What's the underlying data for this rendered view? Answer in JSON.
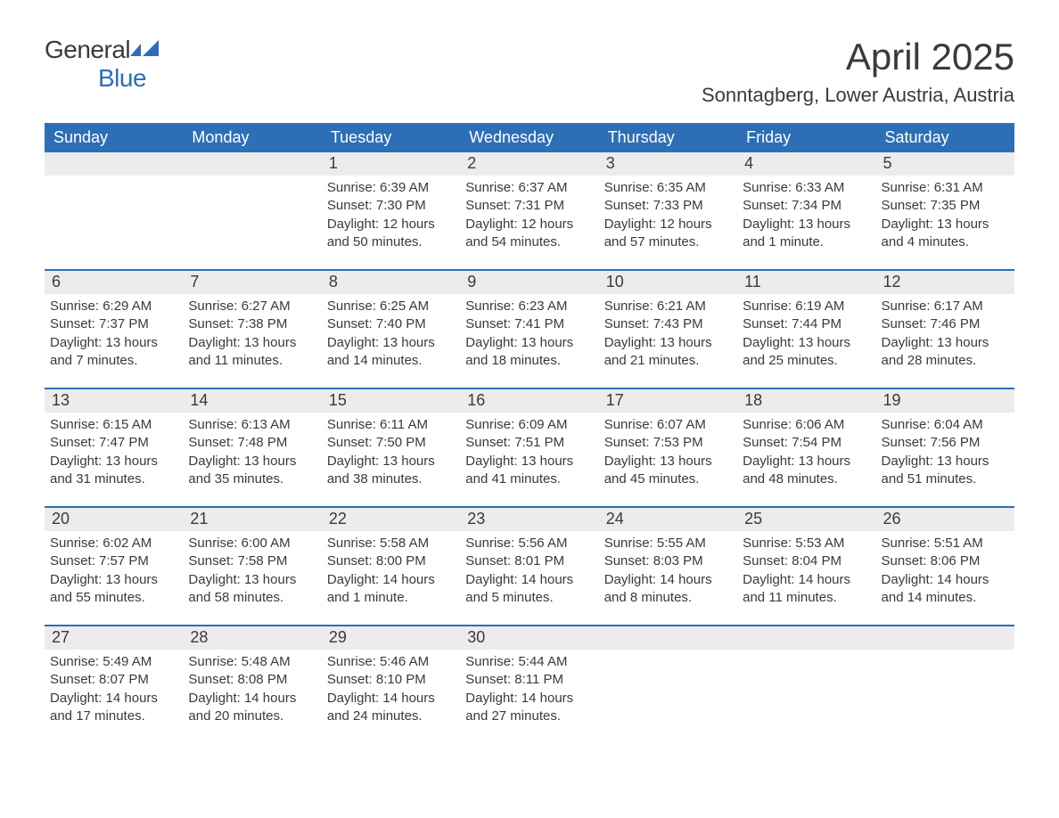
{
  "brand": {
    "word1": "General",
    "word2": "Blue"
  },
  "title": "April 2025",
  "location": "Sonntagberg, Lower Austria, Austria",
  "colors": {
    "brand_blue": "#2d6fb7",
    "header_bg": "#2d6fb7",
    "header_text": "#ffffff",
    "daynum_bg": "#ececec",
    "text": "#3a3a3a",
    "background": "#ffffff"
  },
  "weekdays": [
    "Sunday",
    "Monday",
    "Tuesday",
    "Wednesday",
    "Thursday",
    "Friday",
    "Saturday"
  ],
  "weeks": [
    [
      {
        "n": "",
        "sunrise": "",
        "sunset": "",
        "daylight": ""
      },
      {
        "n": "",
        "sunrise": "",
        "sunset": "",
        "daylight": ""
      },
      {
        "n": "1",
        "sunrise": "Sunrise: 6:39 AM",
        "sunset": "Sunset: 7:30 PM",
        "daylight": "Daylight: 12 hours and 50 minutes."
      },
      {
        "n": "2",
        "sunrise": "Sunrise: 6:37 AM",
        "sunset": "Sunset: 7:31 PM",
        "daylight": "Daylight: 12 hours and 54 minutes."
      },
      {
        "n": "3",
        "sunrise": "Sunrise: 6:35 AM",
        "sunset": "Sunset: 7:33 PM",
        "daylight": "Daylight: 12 hours and 57 minutes."
      },
      {
        "n": "4",
        "sunrise": "Sunrise: 6:33 AM",
        "sunset": "Sunset: 7:34 PM",
        "daylight": "Daylight: 13 hours and 1 minute."
      },
      {
        "n": "5",
        "sunrise": "Sunrise: 6:31 AM",
        "sunset": "Sunset: 7:35 PM",
        "daylight": "Daylight: 13 hours and 4 minutes."
      }
    ],
    [
      {
        "n": "6",
        "sunrise": "Sunrise: 6:29 AM",
        "sunset": "Sunset: 7:37 PM",
        "daylight": "Daylight: 13 hours and 7 minutes."
      },
      {
        "n": "7",
        "sunrise": "Sunrise: 6:27 AM",
        "sunset": "Sunset: 7:38 PM",
        "daylight": "Daylight: 13 hours and 11 minutes."
      },
      {
        "n": "8",
        "sunrise": "Sunrise: 6:25 AM",
        "sunset": "Sunset: 7:40 PM",
        "daylight": "Daylight: 13 hours and 14 minutes."
      },
      {
        "n": "9",
        "sunrise": "Sunrise: 6:23 AM",
        "sunset": "Sunset: 7:41 PM",
        "daylight": "Daylight: 13 hours and 18 minutes."
      },
      {
        "n": "10",
        "sunrise": "Sunrise: 6:21 AM",
        "sunset": "Sunset: 7:43 PM",
        "daylight": "Daylight: 13 hours and 21 minutes."
      },
      {
        "n": "11",
        "sunrise": "Sunrise: 6:19 AM",
        "sunset": "Sunset: 7:44 PM",
        "daylight": "Daylight: 13 hours and 25 minutes."
      },
      {
        "n": "12",
        "sunrise": "Sunrise: 6:17 AM",
        "sunset": "Sunset: 7:46 PM",
        "daylight": "Daylight: 13 hours and 28 minutes."
      }
    ],
    [
      {
        "n": "13",
        "sunrise": "Sunrise: 6:15 AM",
        "sunset": "Sunset: 7:47 PM",
        "daylight": "Daylight: 13 hours and 31 minutes."
      },
      {
        "n": "14",
        "sunrise": "Sunrise: 6:13 AM",
        "sunset": "Sunset: 7:48 PM",
        "daylight": "Daylight: 13 hours and 35 minutes."
      },
      {
        "n": "15",
        "sunrise": "Sunrise: 6:11 AM",
        "sunset": "Sunset: 7:50 PM",
        "daylight": "Daylight: 13 hours and 38 minutes."
      },
      {
        "n": "16",
        "sunrise": "Sunrise: 6:09 AM",
        "sunset": "Sunset: 7:51 PM",
        "daylight": "Daylight: 13 hours and 41 minutes."
      },
      {
        "n": "17",
        "sunrise": "Sunrise: 6:07 AM",
        "sunset": "Sunset: 7:53 PM",
        "daylight": "Daylight: 13 hours and 45 minutes."
      },
      {
        "n": "18",
        "sunrise": "Sunrise: 6:06 AM",
        "sunset": "Sunset: 7:54 PM",
        "daylight": "Daylight: 13 hours and 48 minutes."
      },
      {
        "n": "19",
        "sunrise": "Sunrise: 6:04 AM",
        "sunset": "Sunset: 7:56 PM",
        "daylight": "Daylight: 13 hours and 51 minutes."
      }
    ],
    [
      {
        "n": "20",
        "sunrise": "Sunrise: 6:02 AM",
        "sunset": "Sunset: 7:57 PM",
        "daylight": "Daylight: 13 hours and 55 minutes."
      },
      {
        "n": "21",
        "sunrise": "Sunrise: 6:00 AM",
        "sunset": "Sunset: 7:58 PM",
        "daylight": "Daylight: 13 hours and 58 minutes."
      },
      {
        "n": "22",
        "sunrise": "Sunrise: 5:58 AM",
        "sunset": "Sunset: 8:00 PM",
        "daylight": "Daylight: 14 hours and 1 minute."
      },
      {
        "n": "23",
        "sunrise": "Sunrise: 5:56 AM",
        "sunset": "Sunset: 8:01 PM",
        "daylight": "Daylight: 14 hours and 5 minutes."
      },
      {
        "n": "24",
        "sunrise": "Sunrise: 5:55 AM",
        "sunset": "Sunset: 8:03 PM",
        "daylight": "Daylight: 14 hours and 8 minutes."
      },
      {
        "n": "25",
        "sunrise": "Sunrise: 5:53 AM",
        "sunset": "Sunset: 8:04 PM",
        "daylight": "Daylight: 14 hours and 11 minutes."
      },
      {
        "n": "26",
        "sunrise": "Sunrise: 5:51 AM",
        "sunset": "Sunset: 8:06 PM",
        "daylight": "Daylight: 14 hours and 14 minutes."
      }
    ],
    [
      {
        "n": "27",
        "sunrise": "Sunrise: 5:49 AM",
        "sunset": "Sunset: 8:07 PM",
        "daylight": "Daylight: 14 hours and 17 minutes."
      },
      {
        "n": "28",
        "sunrise": "Sunrise: 5:48 AM",
        "sunset": "Sunset: 8:08 PM",
        "daylight": "Daylight: 14 hours and 20 minutes."
      },
      {
        "n": "29",
        "sunrise": "Sunrise: 5:46 AM",
        "sunset": "Sunset: 8:10 PM",
        "daylight": "Daylight: 14 hours and 24 minutes."
      },
      {
        "n": "30",
        "sunrise": "Sunrise: 5:44 AM",
        "sunset": "Sunset: 8:11 PM",
        "daylight": "Daylight: 14 hours and 27 minutes."
      },
      {
        "n": "",
        "sunrise": "",
        "sunset": "",
        "daylight": ""
      },
      {
        "n": "",
        "sunrise": "",
        "sunset": "",
        "daylight": ""
      },
      {
        "n": "",
        "sunrise": "",
        "sunset": "",
        "daylight": ""
      }
    ]
  ]
}
